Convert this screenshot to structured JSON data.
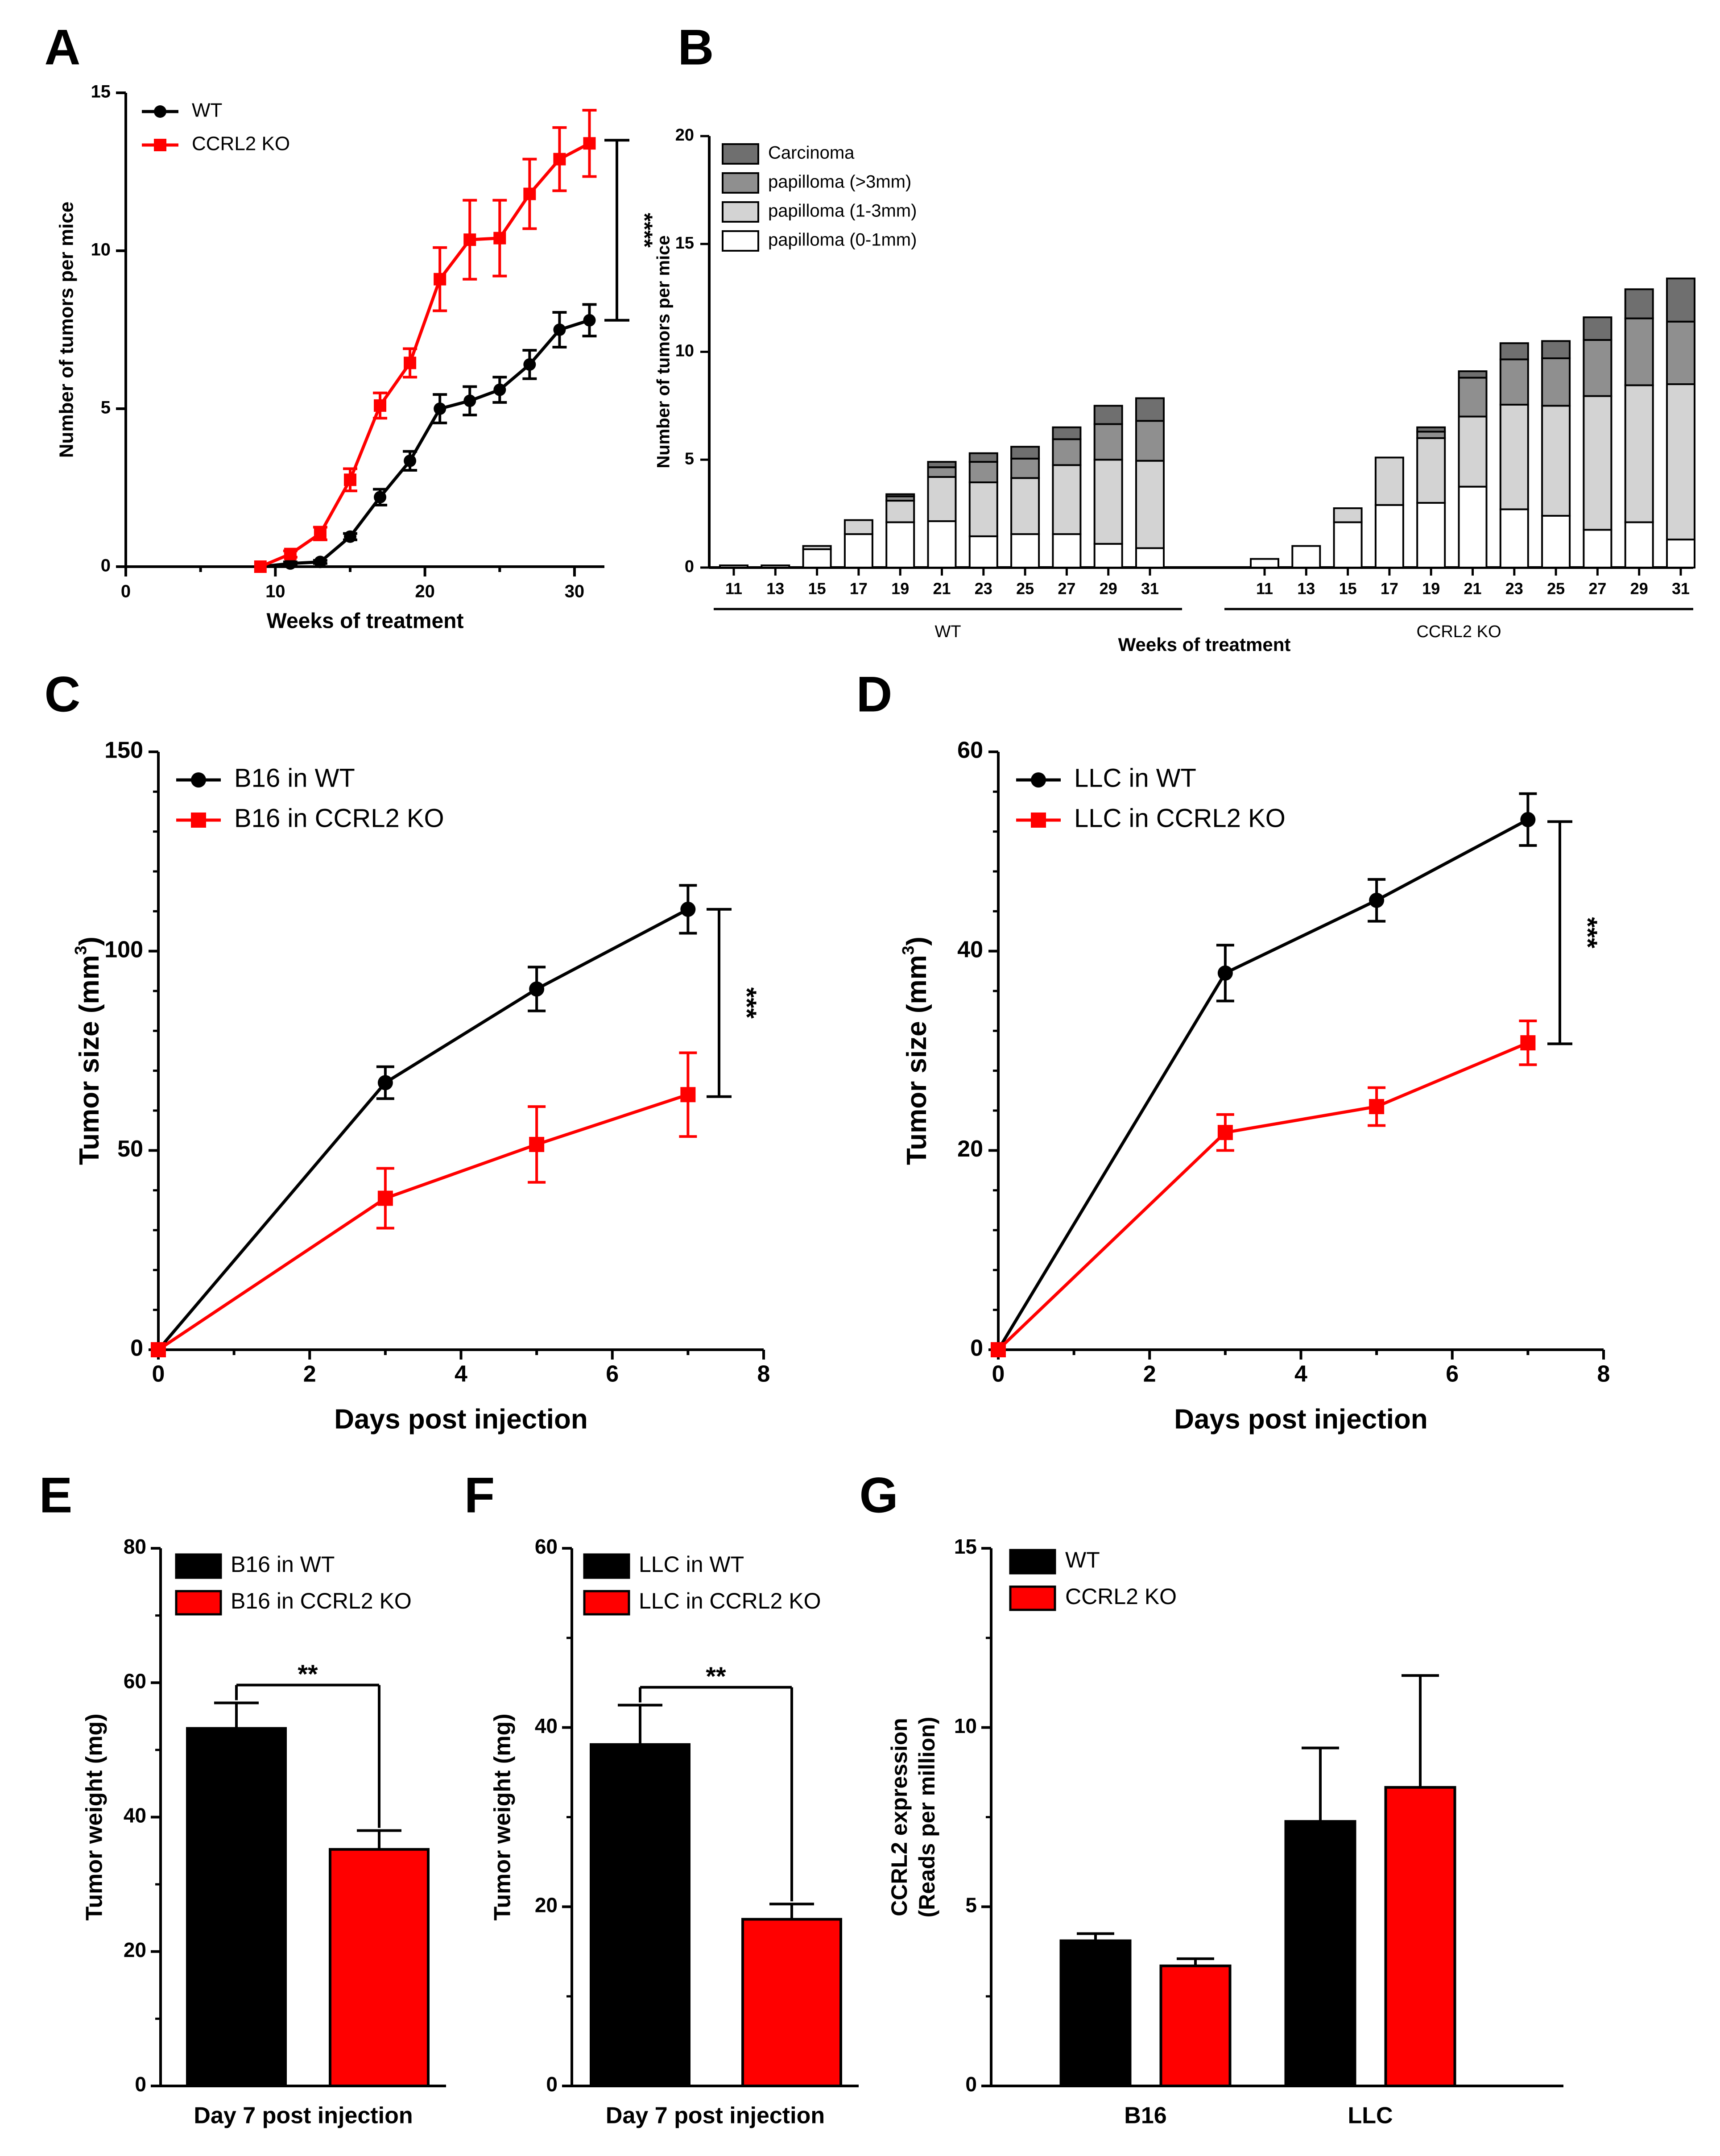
{
  "colors": {
    "wt": "#000000",
    "ko": "#ff0000",
    "carcinoma": "#6f6f6f",
    "pap_gt3": "#8f8f8f",
    "pap_1_3": "#d3d3d3",
    "pap_0_1": "#ffffff"
  },
  "panel_letters": [
    "A",
    "B",
    "C",
    "D",
    "E",
    "F",
    "G"
  ],
  "chart_data": [
    {
      "panel": "A",
      "type": "line",
      "ylabel": "Number of tumors per mice",
      "xlabel": "Weeks of treatment",
      "xlim": [
        0,
        32
      ],
      "ylim": [
        0,
        15
      ],
      "xticks": [
        "0",
        "10",
        "20",
        "30"
      ],
      "yticks": [
        "0",
        "5",
        "10",
        "15"
      ],
      "legend": [
        "WT",
        "CCRL2 KO"
      ],
      "significance": "****",
      "x": [
        9,
        11,
        13,
        15,
        17,
        19,
        21,
        23,
        25,
        27,
        29,
        31
      ],
      "series": [
        {
          "name": "WT",
          "values": [
            0,
            0.1,
            0.15,
            0.95,
            2.2,
            3.35,
            5.0,
            5.25,
            5.6,
            6.4,
            7.5,
            7.8
          ],
          "errors": [
            0,
            0.05,
            0.05,
            0.1,
            0.25,
            0.3,
            0.45,
            0.45,
            0.4,
            0.45,
            0.55,
            0.5
          ]
        },
        {
          "name": "CCRL2 KO",
          "values": [
            0,
            0.4,
            1.05,
            2.75,
            5.1,
            6.45,
            9.1,
            10.35,
            10.4,
            11.8,
            12.9,
            13.4
          ],
          "errors": [
            0,
            0.1,
            0.2,
            0.35,
            0.4,
            0.45,
            1.0,
            1.25,
            1.2,
            1.1,
            1.0,
            1.05
          ]
        }
      ]
    },
    {
      "panel": "B",
      "type": "bar",
      "ylabel": "Number of tumors per mice",
      "xlabel": "Weeks of treatment",
      "ylim": [
        0,
        20
      ],
      "yticks": [
        "0",
        "5",
        "10",
        "15",
        "20"
      ],
      "legend": [
        "Carcinoma",
        "papilloma (>3mm)",
        "papilloma (1-3mm)",
        "papilloma (0-1mm)"
      ],
      "groups": [
        "WT",
        "CCRL2 KO"
      ],
      "categories": [
        "11",
        "13",
        "15",
        "17",
        "19",
        "21",
        "23",
        "25",
        "27",
        "29",
        "31"
      ],
      "series": [
        {
          "name": "papilloma (0-1mm)",
          "wt": [
            0.1,
            0.1,
            0.85,
            1.55,
            2.1,
            2.15,
            1.45,
            1.55,
            1.55,
            1.1,
            0.9
          ],
          "ko": [
            0.4,
            1.0,
            2.1,
            2.9,
            3.0,
            3.75,
            2.7,
            2.4,
            1.75,
            2.1,
            1.3
          ]
        },
        {
          "name": "papilloma (1-3mm)",
          "wt": [
            0,
            0,
            0.15,
            0.65,
            1.0,
            2.05,
            2.5,
            2.6,
            3.2,
            3.9,
            4.05
          ],
          "ko": [
            0,
            0,
            0.65,
            2.2,
            3.0,
            3.25,
            4.85,
            5.1,
            6.2,
            6.35,
            7.2
          ]
        },
        {
          "name": "papilloma (>3mm)",
          "wt": [
            0,
            0,
            0,
            0,
            0.2,
            0.45,
            0.95,
            0.9,
            1.2,
            1.65,
            1.85
          ],
          "ko": [
            0,
            0,
            0,
            0,
            0.3,
            1.8,
            2.1,
            2.2,
            2.6,
            3.1,
            2.9
          ]
        },
        {
          "name": "Carcinoma",
          "wt": [
            0,
            0,
            0,
            0,
            0.1,
            0.25,
            0.4,
            0.55,
            0.55,
            0.85,
            1.05
          ],
          "ko": [
            0,
            0,
            0,
            0,
            0.2,
            0.3,
            0.75,
            0.8,
            1.05,
            1.35,
            2.0
          ]
        }
      ]
    },
    {
      "panel": "C",
      "type": "line",
      "ylabel_main": "Tumor size (mm",
      "ylabel_sup": "3",
      "ylabel_end": ")",
      "xlabel": "Days post injection",
      "xlim": [
        0,
        8
      ],
      "ylim": [
        0,
        150
      ],
      "xticks": [
        "0",
        "2",
        "4",
        "6",
        "8"
      ],
      "yticks": [
        "0",
        "50",
        "100",
        "150"
      ],
      "legend": [
        "B16 in WT",
        "B16 in CCRL2 KO"
      ],
      "significance": "***",
      "x": [
        0,
        3,
        5,
        7
      ],
      "series": [
        {
          "name": "B16 in WT",
          "values": [
            0,
            67,
            90.5,
            110.5
          ],
          "errors": [
            0,
            4,
            5.5,
            6
          ]
        },
        {
          "name": "B16 in CCRL2 KO",
          "values": [
            0,
            38,
            51.5,
            64
          ],
          "errors": [
            0,
            7.5,
            9.5,
            10.5
          ]
        }
      ]
    },
    {
      "panel": "D",
      "type": "line",
      "ylabel_main": "Tumor size (mm",
      "ylabel_sup": "3",
      "ylabel_end": ")",
      "xlabel": "Days post injection",
      "xlim": [
        0,
        8
      ],
      "ylim": [
        0,
        60
      ],
      "xticks": [
        "0",
        "2",
        "4",
        "6",
        "8"
      ],
      "yticks": [
        "0",
        "20",
        "40",
        "60"
      ],
      "legend": [
        "LLC in WT",
        "LLC in CCRL2 KO"
      ],
      "significance": "***",
      "x": [
        0,
        3,
        5,
        7
      ],
      "series": [
        {
          "name": "LLC in WT",
          "values": [
            0,
            37.8,
            45.1,
            53.2
          ],
          "errors": [
            0,
            2.8,
            2.1,
            2.6
          ]
        },
        {
          "name": "LLC in CCRL2 KO",
          "values": [
            0,
            21.8,
            24.4,
            30.8
          ],
          "errors": [
            0,
            1.8,
            1.9,
            2.2
          ]
        }
      ]
    },
    {
      "panel": "E",
      "type": "bar",
      "ylabel": "Tumor weight (mg)",
      "xlabel": "Day 7 post injection",
      "ylim": [
        0,
        80
      ],
      "yticks": [
        "0",
        "20",
        "40",
        "60",
        "80"
      ],
      "legend": [
        "B16 in WT",
        "B16 in CCRL2 KO"
      ],
      "significance": "**",
      "values": [
        53.2,
        35.2
      ],
      "errors": [
        3.8,
        2.8
      ]
    },
    {
      "panel": "F",
      "type": "bar",
      "ylabel": "Tumor weight (mg)",
      "xlabel": "Day 7 post injection",
      "ylim": [
        0,
        60
      ],
      "yticks": [
        "0",
        "20",
        "40",
        "60"
      ],
      "legend": [
        "LLC in WT",
        "LLC in CCRL2 KO"
      ],
      "significance": "**",
      "values": [
        38.1,
        18.6
      ],
      "errors": [
        4.4,
        1.7
      ]
    },
    {
      "panel": "G",
      "type": "bar",
      "ylabel_line1": "CCRL2 expression",
      "ylabel_line2": "(Reads per million)",
      "ylim": [
        0,
        15
      ],
      "yticks": [
        "0",
        "5",
        "10",
        "15"
      ],
      "legend": [
        "WT",
        "CCRL2 KO"
      ],
      "categories": [
        "B16",
        "LLC"
      ],
      "series": [
        {
          "name": "WT",
          "values": [
            4.05,
            7.38
          ],
          "errors": [
            0.2,
            2.05
          ]
        },
        {
          "name": "CCRL2 KO",
          "values": [
            3.35,
            8.33
          ],
          "errors": [
            0.2,
            3.12
          ]
        }
      ]
    }
  ]
}
